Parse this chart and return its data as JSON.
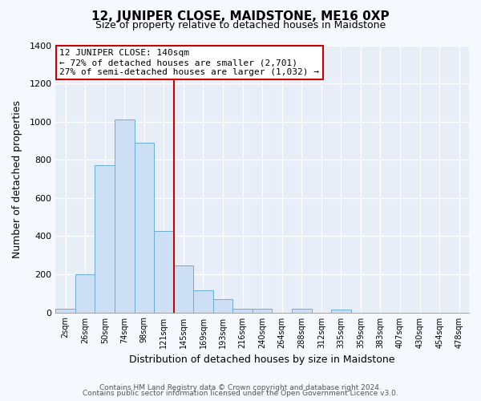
{
  "title": "12, JUNIPER CLOSE, MAIDSTONE, ME16 0XP",
  "subtitle": "Size of property relative to detached houses in Maidstone",
  "xlabel": "Distribution of detached houses by size in Maidstone",
  "ylabel": "Number of detached properties",
  "bar_labels": [
    "2sqm",
    "26sqm",
    "50sqm",
    "74sqm",
    "98sqm",
    "121sqm",
    "145sqm",
    "169sqm",
    "193sqm",
    "216sqm",
    "240sqm",
    "264sqm",
    "288sqm",
    "312sqm",
    "335sqm",
    "359sqm",
    "383sqm",
    "407sqm",
    "430sqm",
    "454sqm",
    "478sqm"
  ],
  "bar_values": [
    20,
    200,
    770,
    1010,
    890,
    425,
    245,
    115,
    70,
    20,
    20,
    0,
    20,
    0,
    15,
    0,
    0,
    0,
    0,
    0,
    0
  ],
  "bar_color": "#ccdff5",
  "bar_edgecolor": "#6baed6",
  "vline_color": "#cc0000",
  "ylim": [
    0,
    1400
  ],
  "yticks": [
    0,
    200,
    400,
    600,
    800,
    1000,
    1200,
    1400
  ],
  "annotation_title": "12 JUNIPER CLOSE: 140sqm",
  "annotation_line1": "← 72% of detached houses are smaller (2,701)",
  "annotation_line2": "27% of semi-detached houses are larger (1,032) →",
  "annotation_box_edgecolor": "#cc0000",
  "footer1": "Contains HM Land Registry data © Crown copyright and database right 2024.",
  "footer2": "Contains public sector information licensed under the Open Government Licence v3.0.",
  "plot_bg_color": "#e8eef8",
  "fig_bg_color": "#f5f8fd"
}
